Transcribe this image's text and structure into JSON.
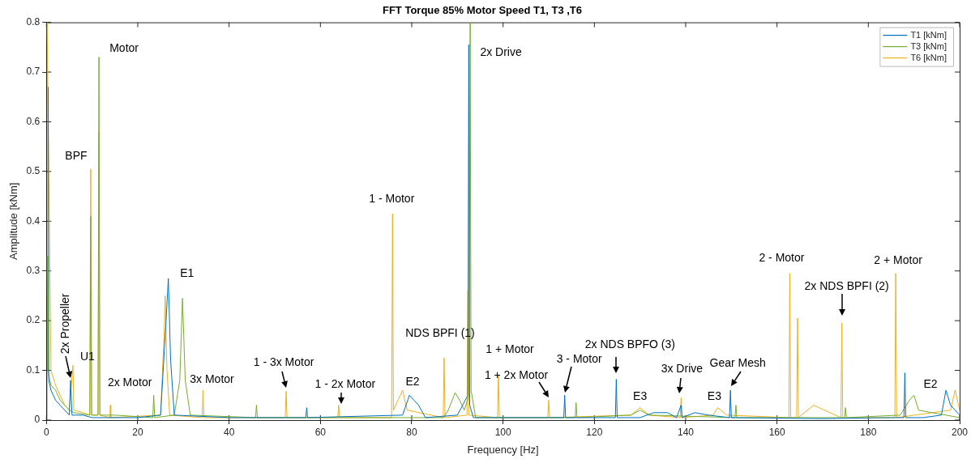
{
  "chart_data": {
    "type": "line",
    "title": "FFT Torque 85% Motor Speed T1, T3 ,T6",
    "xlabel": "Frequency [Hz]",
    "ylabel": "Amplitude [kNm]",
    "xlim": [
      0,
      200
    ],
    "xticks": [
      0,
      20,
      40,
      60,
      80,
      100,
      120,
      140,
      160,
      180,
      200
    ],
    "ylim": [
      0,
      0.8
    ],
    "yticks": [
      0,
      0.1,
      0.2,
      0.3,
      0.4,
      0.5,
      0.6,
      0.7,
      0.8
    ],
    "grid": false,
    "legend": "top right",
    "marker": "none",
    "line_style": "solid",
    "series": [
      {
        "name": "T1 [kNm]",
        "color": "#0072bd",
        "x": [
          0.4,
          0.5,
          1,
          2,
          3,
          4,
          5,
          5.3,
          5.6,
          8,
          10,
          20,
          25,
          26.2,
          26.7,
          27.2,
          28,
          40,
          56.8,
          57,
          57.2,
          78,
          79.5,
          80.5,
          81.5,
          83,
          90,
          92.3,
          92.5,
          92.7,
          93.5,
          113.3,
          113.5,
          113.7,
          124.6,
          124.8,
          125,
          130,
          133,
          136,
          138,
          139,
          139.2,
          142,
          145,
          149.6,
          149.8,
          150,
          170,
          185,
          187.8,
          188,
          188.2,
          192,
          196,
          197,
          198,
          200
        ],
        "values": [
          0.67,
          0.08,
          0.06,
          0.04,
          0.03,
          0.02,
          0.01,
          0.08,
          0.01,
          0.01,
          0.005,
          0.005,
          0.01,
          0.2,
          0.285,
          0.12,
          0.01,
          0.005,
          0.005,
          0.025,
          0.005,
          0.01,
          0.05,
          0.04,
          0.03,
          0.005,
          0.01,
          0.05,
          0.755,
          0.03,
          0.005,
          0.005,
          0.05,
          0.005,
          0.005,
          0.082,
          0.005,
          0.005,
          0.015,
          0.015,
          0.005,
          0.03,
          0.005,
          0.015,
          0.01,
          0.005,
          0.06,
          0.005,
          0.003,
          0.005,
          0.005,
          0.095,
          0.005,
          0.005,
          0.01,
          0.06,
          0.03,
          0.01
        ]
      },
      {
        "name": "T3 [kNm]",
        "color": "#77ac30",
        "x": [
          0.15,
          0.3,
          1,
          2,
          3,
          4,
          5,
          6,
          9.5,
          9.7,
          9.9,
          11.3,
          11.5,
          11.7,
          15,
          23.3,
          23.5,
          23.7,
          28,
          29.2,
          29.8,
          30.4,
          31.5,
          45.8,
          46,
          46.2,
          87,
          88,
          89.5,
          90.5,
          91.5,
          92.6,
          92.8,
          93,
          94,
          115.8,
          116,
          116.2,
          128,
          130,
          132,
          150.8,
          151,
          151.2,
          174.8,
          175,
          175.2,
          187,
          189,
          190,
          191,
          200
        ],
        "values": [
          0.33,
          0.1,
          0.07,
          0.06,
          0.04,
          0.03,
          0.02,
          0.015,
          0.01,
          0.41,
          0.01,
          0.01,
          0.73,
          0.01,
          0.01,
          0.005,
          0.05,
          0.005,
          0.01,
          0.08,
          0.245,
          0.08,
          0.01,
          0.005,
          0.03,
          0.005,
          0.005,
          0.02,
          0.055,
          0.04,
          0.02,
          0.05,
          0.8,
          0.06,
          0.005,
          0.005,
          0.035,
          0.005,
          0.01,
          0.02,
          0.01,
          0.005,
          0.03,
          0.005,
          0.005,
          0.025,
          0.005,
          0.01,
          0.04,
          0.05,
          0.02,
          0.005
        ]
      },
      {
        "name": "T6 [kNm]",
        "color": "#edb120",
        "x": [
          0.15,
          1,
          2,
          3,
          4,
          5,
          5.8,
          6,
          8,
          9.5,
          9.7,
          9.9,
          11.3,
          11.5,
          11.7,
          13.9,
          14,
          14.1,
          25,
          25.8,
          26,
          26.4,
          27,
          34.1,
          34.3,
          34.5,
          52.3,
          52.5,
          52.7,
          63.8,
          64,
          64.2,
          75.6,
          75.8,
          76,
          77,
          78,
          79,
          86.9,
          87.1,
          87.3,
          92.1,
          92.3,
          92.5,
          98.8,
          99,
          99.2,
          109.8,
          110,
          110.2,
          128,
          130,
          132,
          138.8,
          139,
          139.2,
          146,
          147,
          149,
          162.6,
          162.8,
          163,
          164.3,
          164.5,
          164.7,
          168,
          174,
          174.2,
          174.4,
          185.8,
          186,
          186.2,
          198,
          199,
          200
        ],
        "values": [
          0.8,
          0.1,
          0.07,
          0.05,
          0.03,
          0.02,
          0.11,
          0.02,
          0.015,
          0.01,
          0.505,
          0.01,
          0.01,
          0.58,
          0.01,
          0.005,
          0.03,
          0.005,
          0.01,
          0.18,
          0.25,
          0.1,
          0.01,
          0.005,
          0.06,
          0.005,
          0.005,
          0.058,
          0.005,
          0.005,
          0.03,
          0.005,
          0.005,
          0.415,
          0.02,
          0.04,
          0.06,
          0.02,
          0.005,
          0.125,
          0.005,
          0.01,
          0.26,
          0.01,
          0.005,
          0.09,
          0.005,
          0.005,
          0.04,
          0.005,
          0.01,
          0.025,
          0.01,
          0.005,
          0.045,
          0.005,
          0.01,
          0.025,
          0.01,
          0.005,
          0.295,
          0.005,
          0.005,
          0.205,
          0.005,
          0.03,
          0.005,
          0.195,
          0.005,
          0.005,
          0.295,
          0.005,
          0.02,
          0.06,
          0.02
        ]
      }
    ],
    "annotations": [
      {
        "text": "2x Propeller",
        "x": 5.3,
        "y": 0.08
      },
      {
        "text": "U1",
        "x": 5.8,
        "y": 0.11
      },
      {
        "text": "BPF",
        "x": 9.7,
        "y": 0.505
      },
      {
        "text": "Motor",
        "x": 11.5,
        "y": 0.73
      },
      {
        "text": "2x Motor",
        "x": 14,
        "y": 0.03
      },
      {
        "text": "E1",
        "x": 26.7,
        "y": 0.285
      },
      {
        "text": "3x Motor",
        "x": 34.3,
        "y": 0.06
      },
      {
        "text": "1 - 3x Motor",
        "x": 52.5,
        "y": 0.058
      },
      {
        "text": "1 - 2x Motor",
        "x": 64,
        "y": 0.03
      },
      {
        "text": "1 - Motor",
        "x": 75.8,
        "y": 0.415
      },
      {
        "text": "NDS BPFI (1)",
        "x": 87.1,
        "y": 0.125
      },
      {
        "text": "E2",
        "x": 80,
        "y": 0.05
      },
      {
        "text": "2x Drive",
        "x": 92.8,
        "y": 0.8
      },
      {
        "text": "1 + 2x Motor",
        "x": 110,
        "y": 0.04
      },
      {
        "text": "1 + Motor",
        "x": 99,
        "y": 0.09
      },
      {
        "text": "3 - Motor",
        "x": 113.5,
        "y": 0.05
      },
      {
        "text": "2x NDS BPFO (3)",
        "x": 124.8,
        "y": 0.082
      },
      {
        "text": "E3",
        "x": 130,
        "y": 0.025
      },
      {
        "text": "3x Drive",
        "x": 139,
        "y": 0.045
      },
      {
        "text": "E3",
        "x": 147,
        "y": 0.025
      },
      {
        "text": "Gear Mesh",
        "x": 149.8,
        "y": 0.06
      },
      {
        "text": "2 - Motor",
        "x": 162.8,
        "y": 0.295
      },
      {
        "text": "2x NDS BPFI (2)",
        "x": 174.2,
        "y": 0.195
      },
      {
        "text": "2 + Motor",
        "x": 186,
        "y": 0.295
      },
      {
        "text": "E2",
        "x": 197,
        "y": 0.06
      }
    ]
  }
}
